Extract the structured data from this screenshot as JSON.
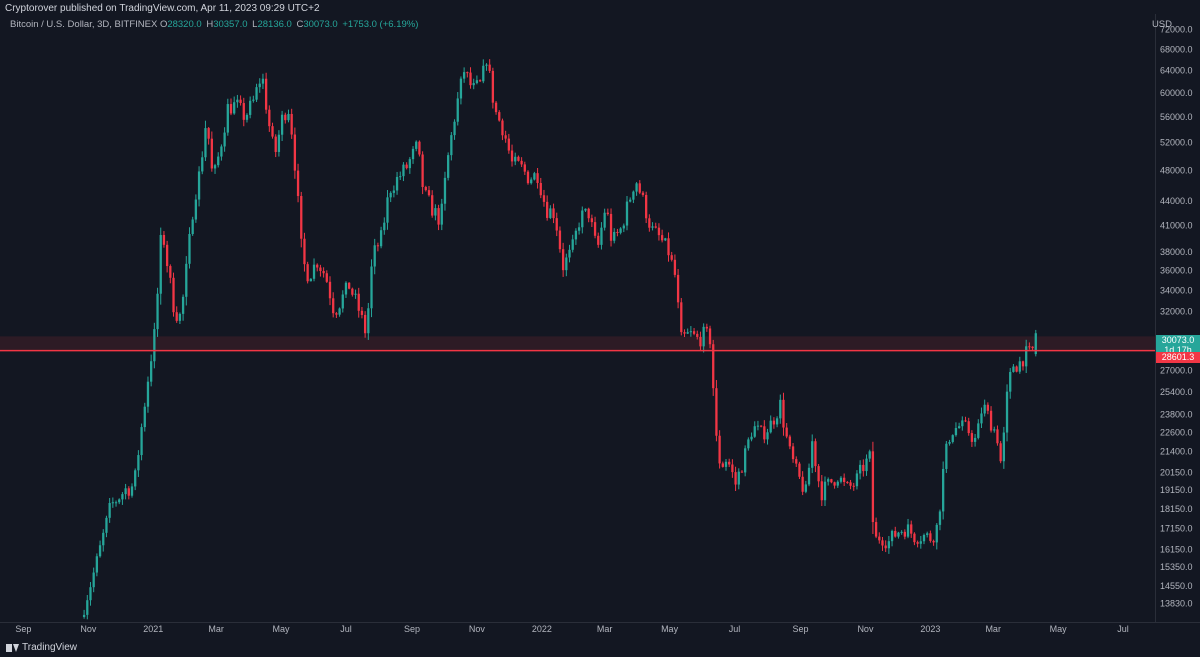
{
  "header": {
    "published": "Cryptorover published on TradingView.com, Apr 11, 2023 09:29 UTC+2"
  },
  "legend": {
    "symbol": "Bitcoin / U.S. Dollar, 3D, BITFINEX",
    "o_label": "O",
    "o": "28320.0",
    "h_label": "H",
    "h": "30357.0",
    "l_label": "L",
    "l": "28136.0",
    "c_label": "C",
    "c": "30073.0",
    "change": "+1753.0 (+6.19%)"
  },
  "currency": "USD",
  "branding": "TradingView",
  "price_tags": {
    "last_price": "30073.0",
    "countdown": "1d 17h",
    "line_price": "28601.3"
  },
  "colors": {
    "background": "#131722",
    "bull": "#26a69a",
    "bear": "#f23645",
    "line": "#f23645",
    "text": "#b2b5be"
  },
  "chart_data": {
    "type": "candlestick",
    "timeframe": "3D",
    "exchange": "BITFINEX",
    "y_scale": "log",
    "ylim": [
      13300,
      74000
    ],
    "xlim": [
      "2020-08-10",
      "2023-07-31"
    ],
    "y_ticks": [
      72000.0,
      68000.0,
      64000.0,
      60000.0,
      56000.0,
      52000.0,
      48000.0,
      44000.0,
      41000.0,
      38000.0,
      36000.0,
      34000.0,
      32000.0,
      27000.0,
      25400.0,
      23800.0,
      22600.0,
      21400.0,
      20150.0,
      19150.0,
      18150.0,
      17150.0,
      16150.0,
      15350.0,
      14550.0,
      13830.0
    ],
    "x_ticks": [
      {
        "label": "Sep",
        "date": "2020-09-01"
      },
      {
        "label": "Nov",
        "date": "2020-11-01"
      },
      {
        "label": "2021",
        "date": "2021-01-01"
      },
      {
        "label": "Mar",
        "date": "2021-03-01"
      },
      {
        "label": "May",
        "date": "2021-05-01"
      },
      {
        "label": "Jul",
        "date": "2021-07-01"
      },
      {
        "label": "Sep",
        "date": "2021-09-01"
      },
      {
        "label": "Nov",
        "date": "2021-11-01"
      },
      {
        "label": "2022",
        "date": "2022-01-01"
      },
      {
        "label": "Mar",
        "date": "2022-03-01"
      },
      {
        "label": "May",
        "date": "2022-05-01"
      },
      {
        "label": "Jul",
        "date": "2022-07-01"
      },
      {
        "label": "Sep",
        "date": "2022-09-01"
      },
      {
        "label": "Nov",
        "date": "2022-11-01"
      },
      {
        "label": "2023",
        "date": "2023-01-01"
      },
      {
        "label": "Mar",
        "date": "2023-03-01"
      },
      {
        "label": "May",
        "date": "2023-05-01"
      },
      {
        "label": "Jul",
        "date": "2023-07-01"
      }
    ],
    "horizontal_line": 28601.3,
    "resistance_zone": [
      28601.3,
      29800
    ],
    "last_candle": {
      "open": 28320.0,
      "high": 30357.0,
      "low": 28136.0,
      "close": 30073.0
    },
    "price_path": [
      [
        "2020-10-25",
        13300
      ],
      [
        "2020-11-08",
        15400
      ],
      [
        "2020-11-22",
        18300
      ],
      [
        "2020-12-06",
        19200
      ],
      [
        "2020-12-14",
        19400
      ],
      [
        "2020-12-22",
        23500
      ],
      [
        "2020-12-28",
        27000
      ],
      [
        "2021-01-03",
        30500
      ],
      [
        "2021-01-09",
        41000
      ],
      [
        "2021-01-15",
        36000
      ],
      [
        "2021-01-21",
        32000
      ],
      [
        "2021-01-27",
        31500
      ],
      [
        "2021-02-02",
        37000
      ],
      [
        "2021-02-08",
        44000
      ],
      [
        "2021-02-14",
        48000
      ],
      [
        "2021-02-20",
        56000
      ],
      [
        "2021-02-26",
        46500
      ],
      [
        "2021-03-04",
        50500
      ],
      [
        "2021-03-12",
        57500
      ],
      [
        "2021-03-20",
        58000
      ],
      [
        "2021-03-28",
        56000
      ],
      [
        "2021-04-05",
        58500
      ],
      [
        "2021-04-13",
        63500
      ],
      [
        "2021-04-19",
        55500
      ],
      [
        "2021-04-25",
        50000
      ],
      [
        "2021-05-03",
        56500
      ],
      [
        "2021-05-09",
        57500
      ],
      [
        "2021-05-15",
        47500
      ],
      [
        "2021-05-21",
        37000
      ],
      [
        "2021-05-27",
        35500
      ],
      [
        "2021-06-04",
        37000
      ],
      [
        "2021-06-12",
        35500
      ],
      [
        "2021-06-20",
        32000
      ],
      [
        "2021-06-26",
        33000
      ],
      [
        "2021-07-04",
        34500
      ],
      [
        "2021-07-12",
        32500
      ],
      [
        "2021-07-20",
        30000
      ],
      [
        "2021-07-26",
        37500
      ],
      [
        "2021-08-03",
        39500
      ],
      [
        "2021-08-11",
        45500
      ],
      [
        "2021-08-19",
        47000
      ],
      [
        "2021-08-27",
        48500
      ],
      [
        "2021-09-06",
        51500
      ],
      [
        "2021-09-12",
        45000
      ],
      [
        "2021-09-20",
        43000
      ],
      [
        "2021-09-28",
        41500
      ],
      [
        "2021-10-04",
        49000
      ],
      [
        "2021-10-12",
        57000
      ],
      [
        "2021-10-20",
        64000
      ],
      [
        "2021-10-28",
        60500
      ],
      [
        "2021-11-05",
        61500
      ],
      [
        "2021-11-10",
        66500
      ],
      [
        "2021-11-18",
        57000
      ],
      [
        "2021-11-26",
        54000
      ],
      [
        "2021-12-04",
        49000
      ],
      [
        "2021-12-12",
        48500
      ],
      [
        "2021-12-20",
        47000
      ],
      [
        "2021-12-28",
        47500
      ],
      [
        "2022-01-05",
        43000
      ],
      [
        "2022-01-13",
        42500
      ],
      [
        "2022-01-21",
        36500
      ],
      [
        "2022-01-29",
        38000
      ],
      [
        "2022-02-06",
        42000
      ],
      [
        "2022-02-14",
        42500
      ],
      [
        "2022-02-22",
        38000
      ],
      [
        "2022-03-02",
        43500
      ],
      [
        "2022-03-08",
        39000
      ],
      [
        "2022-03-16",
        40500
      ],
      [
        "2022-03-24",
        44000
      ],
      [
        "2022-03-30",
        47000
      ],
      [
        "2022-04-06",
        44000
      ],
      [
        "2022-04-14",
        40500
      ],
      [
        "2022-04-22",
        39500
      ],
      [
        "2022-04-30",
        38000
      ],
      [
        "2022-05-06",
        35500
      ],
      [
        "2022-05-12",
        29500
      ],
      [
        "2022-05-20",
        30000
      ],
      [
        "2022-05-28",
        29500
      ],
      [
        "2022-06-03",
        30000
      ],
      [
        "2022-06-09",
        29500
      ],
      [
        "2022-06-13",
        22500
      ],
      [
        "2022-06-18",
        20500
      ],
      [
        "2022-06-24",
        21000
      ],
      [
        "2022-07-02",
        19500
      ],
      [
        "2022-07-10",
        21000
      ],
      [
        "2022-07-18",
        23000
      ],
      [
        "2022-07-26",
        22500
      ],
      [
        "2022-08-03",
        23000
      ],
      [
        "2022-08-13",
        24500
      ],
      [
        "2022-08-21",
        21500
      ],
      [
        "2022-08-29",
        20000
      ],
      [
        "2022-09-06",
        19000
      ],
      [
        "2022-09-12",
        22000
      ],
      [
        "2022-09-20",
        19000
      ],
      [
        "2022-09-28",
        19500
      ],
      [
        "2022-10-06",
        20000
      ],
      [
        "2022-10-14",
        19200
      ],
      [
        "2022-10-22",
        19500
      ],
      [
        "2022-10-30",
        20500
      ],
      [
        "2022-11-05",
        21000
      ],
      [
        "2022-11-09",
        16500
      ],
      [
        "2022-11-15",
        16800
      ],
      [
        "2022-11-23",
        16500
      ],
      [
        "2022-12-01",
        17000
      ],
      [
        "2022-12-09",
        17200
      ],
      [
        "2022-12-17",
        16800
      ],
      [
        "2022-12-25",
        16800
      ],
      [
        "2023-01-02",
        16700
      ],
      [
        "2023-01-08",
        17300
      ],
      [
        "2023-01-14",
        20800
      ],
      [
        "2023-01-20",
        22700
      ],
      [
        "2023-01-28",
        23000
      ],
      [
        "2023-02-05",
        22800
      ],
      [
        "2023-02-13",
        22000
      ],
      [
        "2023-02-19",
        24500
      ],
      [
        "2023-02-27",
        23300
      ],
      [
        "2023-03-05",
        22300
      ],
      [
        "2023-03-09",
        20300
      ],
      [
        "2023-03-13",
        24500
      ],
      [
        "2023-03-19",
        27500
      ],
      [
        "2023-03-25",
        27500
      ],
      [
        "2023-03-31",
        28300
      ],
      [
        "2023-04-06",
        28300
      ],
      [
        "2023-04-11",
        30073
      ]
    ]
  }
}
